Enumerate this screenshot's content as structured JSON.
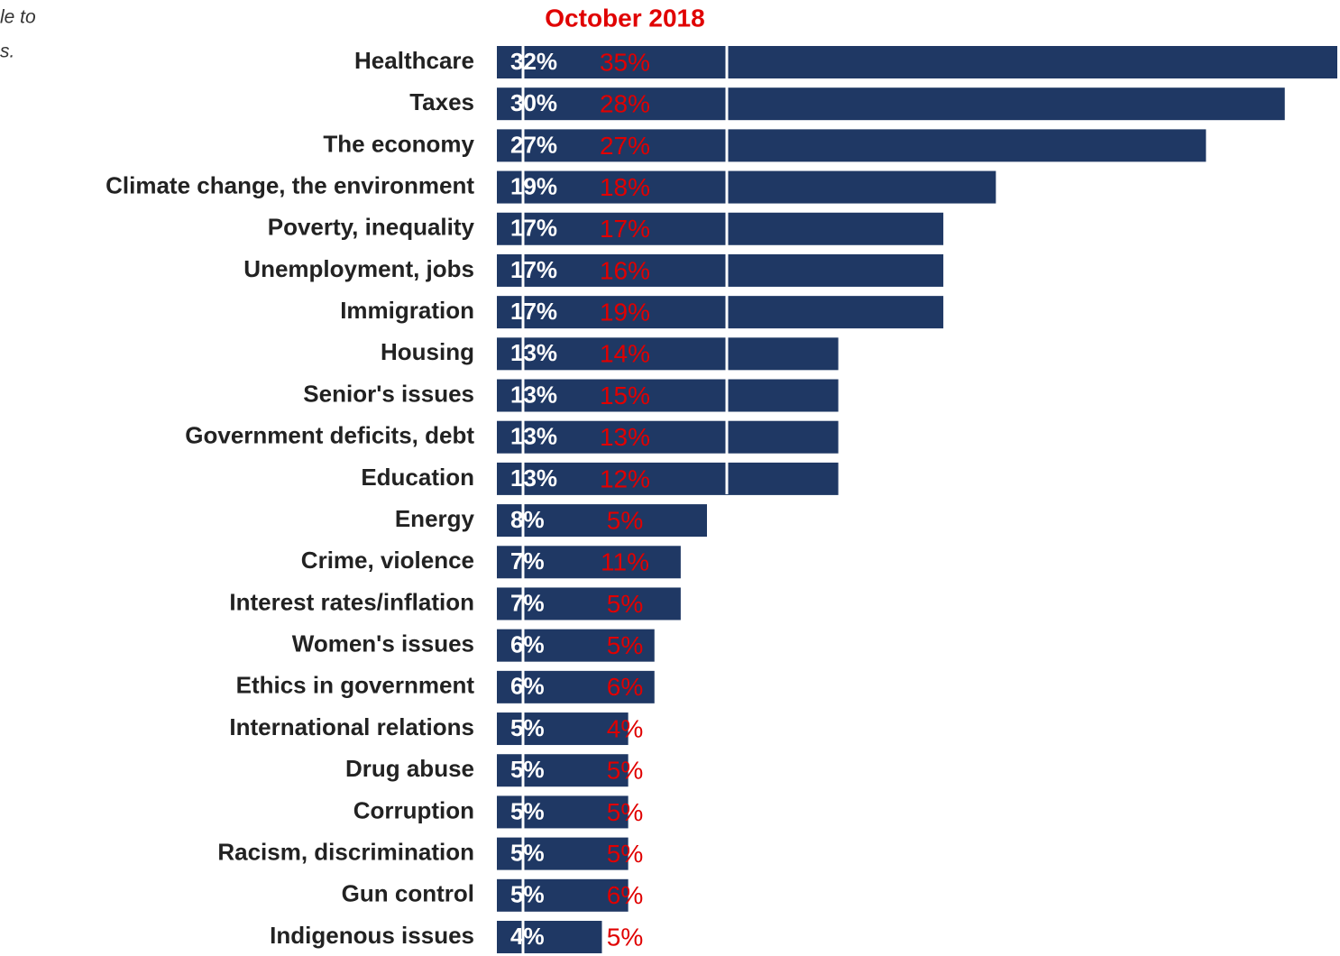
{
  "chart_data": {
    "type": "bar",
    "orientation": "horizontal",
    "notes": [
      "le to",
      "s."
    ],
    "categories": [
      "Healthcare",
      "Taxes",
      "The economy",
      "Climate change, the environment",
      "Poverty, inequality",
      "Unemployment, jobs",
      "Immigration",
      "Housing",
      "Senior's issues",
      "Government deficits, debt",
      "Education",
      "Energy",
      "Crime, violence",
      "Interest rates/inflation",
      "Women's issues",
      "Ethics in government",
      "International relations",
      "Drug abuse",
      "Corruption",
      "Racism, discrimination",
      "Gun control",
      "Indigenous issues"
    ],
    "series": [
      {
        "color": "#1f3864",
        "values": [
          32,
          30,
          27,
          19,
          17,
          17,
          17,
          13,
          13,
          13,
          13,
          8,
          7,
          7,
          6,
          6,
          5,
          5,
          5,
          5,
          5,
          4
        ],
        "value_labels": [
          "32%",
          "30%",
          "27%",
          "19%",
          "17%",
          "17%",
          "17%",
          "13%",
          "13%",
          "13%",
          "13%",
          "8%",
          "7%",
          "7%",
          "6%",
          "6%",
          "5%",
          "5%",
          "5%",
          "5%",
          "5%",
          "4%"
        ]
      },
      {
        "name": "October 2018",
        "color": "#e00000",
        "values": [
          35,
          28,
          27,
          18,
          17,
          16,
          19,
          14,
          15,
          13,
          12,
          5,
          11,
          5,
          5,
          6,
          4,
          5,
          5,
          5,
          6,
          5
        ],
        "value_labels": [
          "35%",
          "28%",
          "27%",
          "18%",
          "17%",
          "16%",
          "19%",
          "14%",
          "15%",
          "13%",
          "12%",
          "5%",
          "11%",
          "5%",
          "5%",
          "6%",
          "4%",
          "5%",
          "5%",
          "5%",
          "6%",
          "5%"
        ]
      }
    ]
  }
}
